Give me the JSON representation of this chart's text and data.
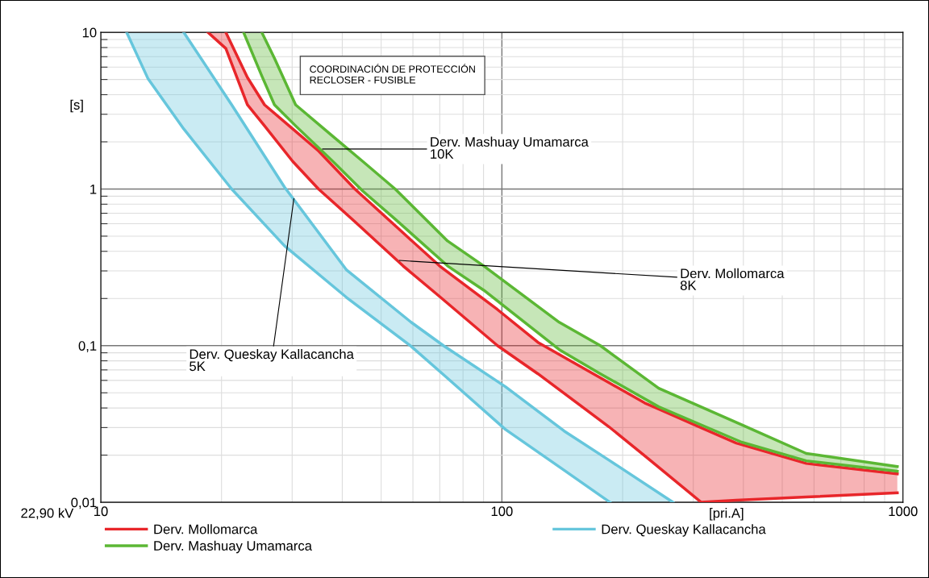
{
  "chart_data": {
    "type": "line",
    "title": "COORDINACIÓN DE PROTECCIÓN\nRECLOSER - FUSIBLE",
    "xlabel": "[pri.A]",
    "ylabel": "[s]",
    "log": "xy",
    "grid": true,
    "legend": "bottom",
    "xlim": [
      10,
      1000
    ],
    "ylim": [
      0.01,
      10
    ],
    "xticks": [
      10,
      100,
      1000
    ],
    "yticks": [
      {
        "value": 0.01,
        "label": "0,01"
      },
      {
        "value": 0.1,
        "label": "0,1"
      },
      1,
      10
    ],
    "annotations": [
      "22,90 kV",
      {
        "text": "Derv. Mashuay Umamarca\n10K",
        "x": 35.7,
        "y": 1.8
      },
      {
        "text": "Derv. Mollomarca\n8K",
        "x": 55.5,
        "y": 0.35
      },
      {
        "text": "Derv. Queskay Kallacancha\n5K",
        "x": 30.3,
        "y": 0.87
      }
    ],
    "series": [
      {
        "name": "Derv. Mollomarca",
        "color": "#e8262a",
        "x": [
          18.5,
          20.5,
          23.2,
          25.6,
          30.1,
          34.9,
          43.0,
          56.7,
          69.9,
          97.5,
          123,
          185,
          227,
          314,
          384,
          574,
          968
        ],
        "values": [
          10,
          7.89,
          3.45,
          2.53,
          1.5,
          1.0,
          0.619,
          0.323,
          0.206,
          0.1,
          0.0661,
          0.0303,
          0.0198,
          0.01,
          0.0103,
          0.0108,
          0.0115
        ]
      },
      {
        "color": "#e8262a",
        "x": [
          18.5,
          20.5,
          23.2,
          25.6,
          30.1,
          34.9,
          43.0,
          56.7,
          69.9,
          97.5,
          123,
          185,
          227,
          314,
          384,
          574,
          968
        ],
        "values": [
          null,
          10,
          5.16,
          3.45,
          2.42,
          1.75,
          1.0,
          0.525,
          0.323,
          0.17,
          0.105,
          0.058,
          0.0431,
          0.0299,
          0.0239,
          0.0177,
          0.0152
        ],
        "lower": [
          10,
          7.89,
          3.45,
          2.53,
          1.5,
          1.0,
          0.619,
          0.323,
          0.206,
          0.1,
          0.0661,
          0.0303,
          0.0198,
          0.01,
          0.0103,
          0.0108,
          0.0115
        ],
        "upper": [
          10,
          10,
          5.16,
          3.45,
          2.42,
          1.75,
          1.0,
          0.525,
          0.323,
          0.17,
          0.105,
          0.058,
          0.0431,
          0.0299,
          0.0239,
          0.0177,
          0.0152
        ]
      },
      {
        "name": "Derv. Mashuay Umamarca",
        "color": "#5bb734",
        "x": [
          22.7,
          25.2,
          27.1,
          30.6,
          37.9,
          45.0,
          54.2,
          73.2,
          90.1,
          139,
          176,
          246,
          396,
          574,
          968
        ],
        "values": [
          10,
          5.28,
          3.45,
          2.53,
          1.5,
          0.97,
          0.642,
          0.323,
          0.226,
          0.0943,
          0.0661,
          0.0407,
          0.0242,
          0.0184,
          0.0158
        ]
      },
      {
        "color": "#5bb734",
        "x": [
          22.7,
          25.2,
          27.1,
          30.6,
          37.9,
          45.0,
          54.2,
          73.2,
          90.1,
          139,
          176,
          246,
          396,
          574,
          968
        ],
        "values": [
          null,
          10,
          6.84,
          3.45,
          2.17,
          1.5,
          1.0,
          0.466,
          0.323,
          0.141,
          0.1,
          0.0534,
          0.0313,
          0.0205,
          0.0169
        ],
        "lower": [
          10,
          5.28,
          3.45,
          2.53,
          1.5,
          0.97,
          0.642,
          0.323,
          0.226,
          0.0943,
          0.0661,
          0.0407,
          0.0242,
          0.0184,
          0.0158
        ],
        "upper": [
          10,
          10,
          6.84,
          3.45,
          2.17,
          1.5,
          1.0,
          0.466,
          0.323,
          0.141,
          0.1,
          0.0534,
          0.0313,
          0.0205,
          0.0169
        ]
      },
      {
        "name": "Derv. Queskay Kallacancha",
        "color": "#66c6dc",
        "x": [
          11.6,
          13.1,
          16.1,
          21.2,
          28.7,
          41,
          59.4,
          71.5,
          102,
          143,
          186
        ],
        "values": [
          10,
          5.09,
          2.42,
          1.0,
          0.434,
          0.203,
          0.099,
          0.0653,
          0.0292,
          0.016,
          0.01
        ]
      },
      {
        "color": "#66c6dc",
        "x": [
          11.6,
          13.1,
          16.1,
          21.2,
          28.7,
          41,
          59.4,
          71.5,
          102,
          143,
          186,
          267
        ],
        "values": [
          null,
          null,
          10,
          3.45,
          1.03,
          0.304,
          0.141,
          0.1,
          0.0547,
          0.0285,
          0.0184,
          0.01
        ],
        "lower": [
          10,
          5.09,
          2.42,
          1.0,
          0.434,
          0.203,
          0.099,
          0.0653,
          0.0292,
          0.016,
          0.01,
          0.01
        ],
        "upper": [
          10,
          10,
          10,
          3.45,
          1.03,
          0.304,
          0.141,
          0.1,
          0.0547,
          0.0285,
          0.0184,
          0.01
        ]
      }
    ]
  }
}
